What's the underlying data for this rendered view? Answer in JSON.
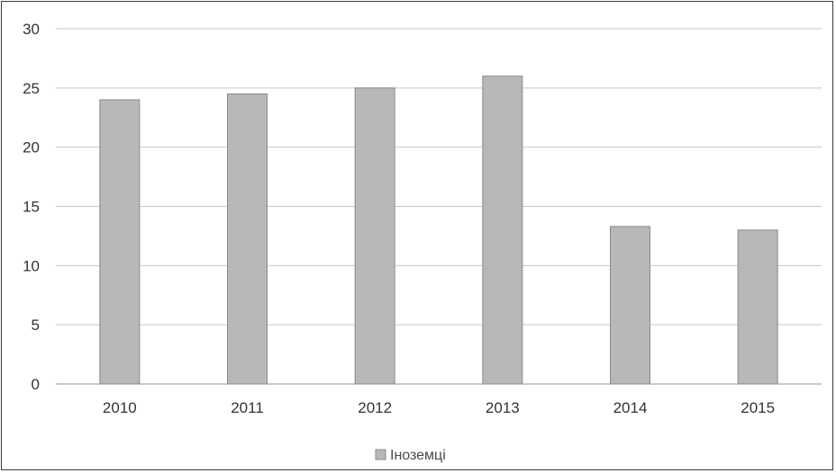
{
  "chart_data": {
    "type": "bar",
    "categories": [
      "2010",
      "2011",
      "2012",
      "2013",
      "2014",
      "2015"
    ],
    "series": [
      {
        "name": "Іноземці",
        "values": [
          24,
          24.5,
          25,
          26,
          13.3,
          13
        ]
      }
    ],
    "ylim": [
      0,
      30
    ],
    "yticks": [
      "0",
      "5",
      "10",
      "15",
      "20",
      "25",
      "30"
    ],
    "grid": true,
    "legend_position": "bottom",
    "colors": {
      "bar_fill": "#b8b8b8",
      "bar_stroke": "#8a8a8a",
      "grid": "#c8c8c8"
    }
  }
}
